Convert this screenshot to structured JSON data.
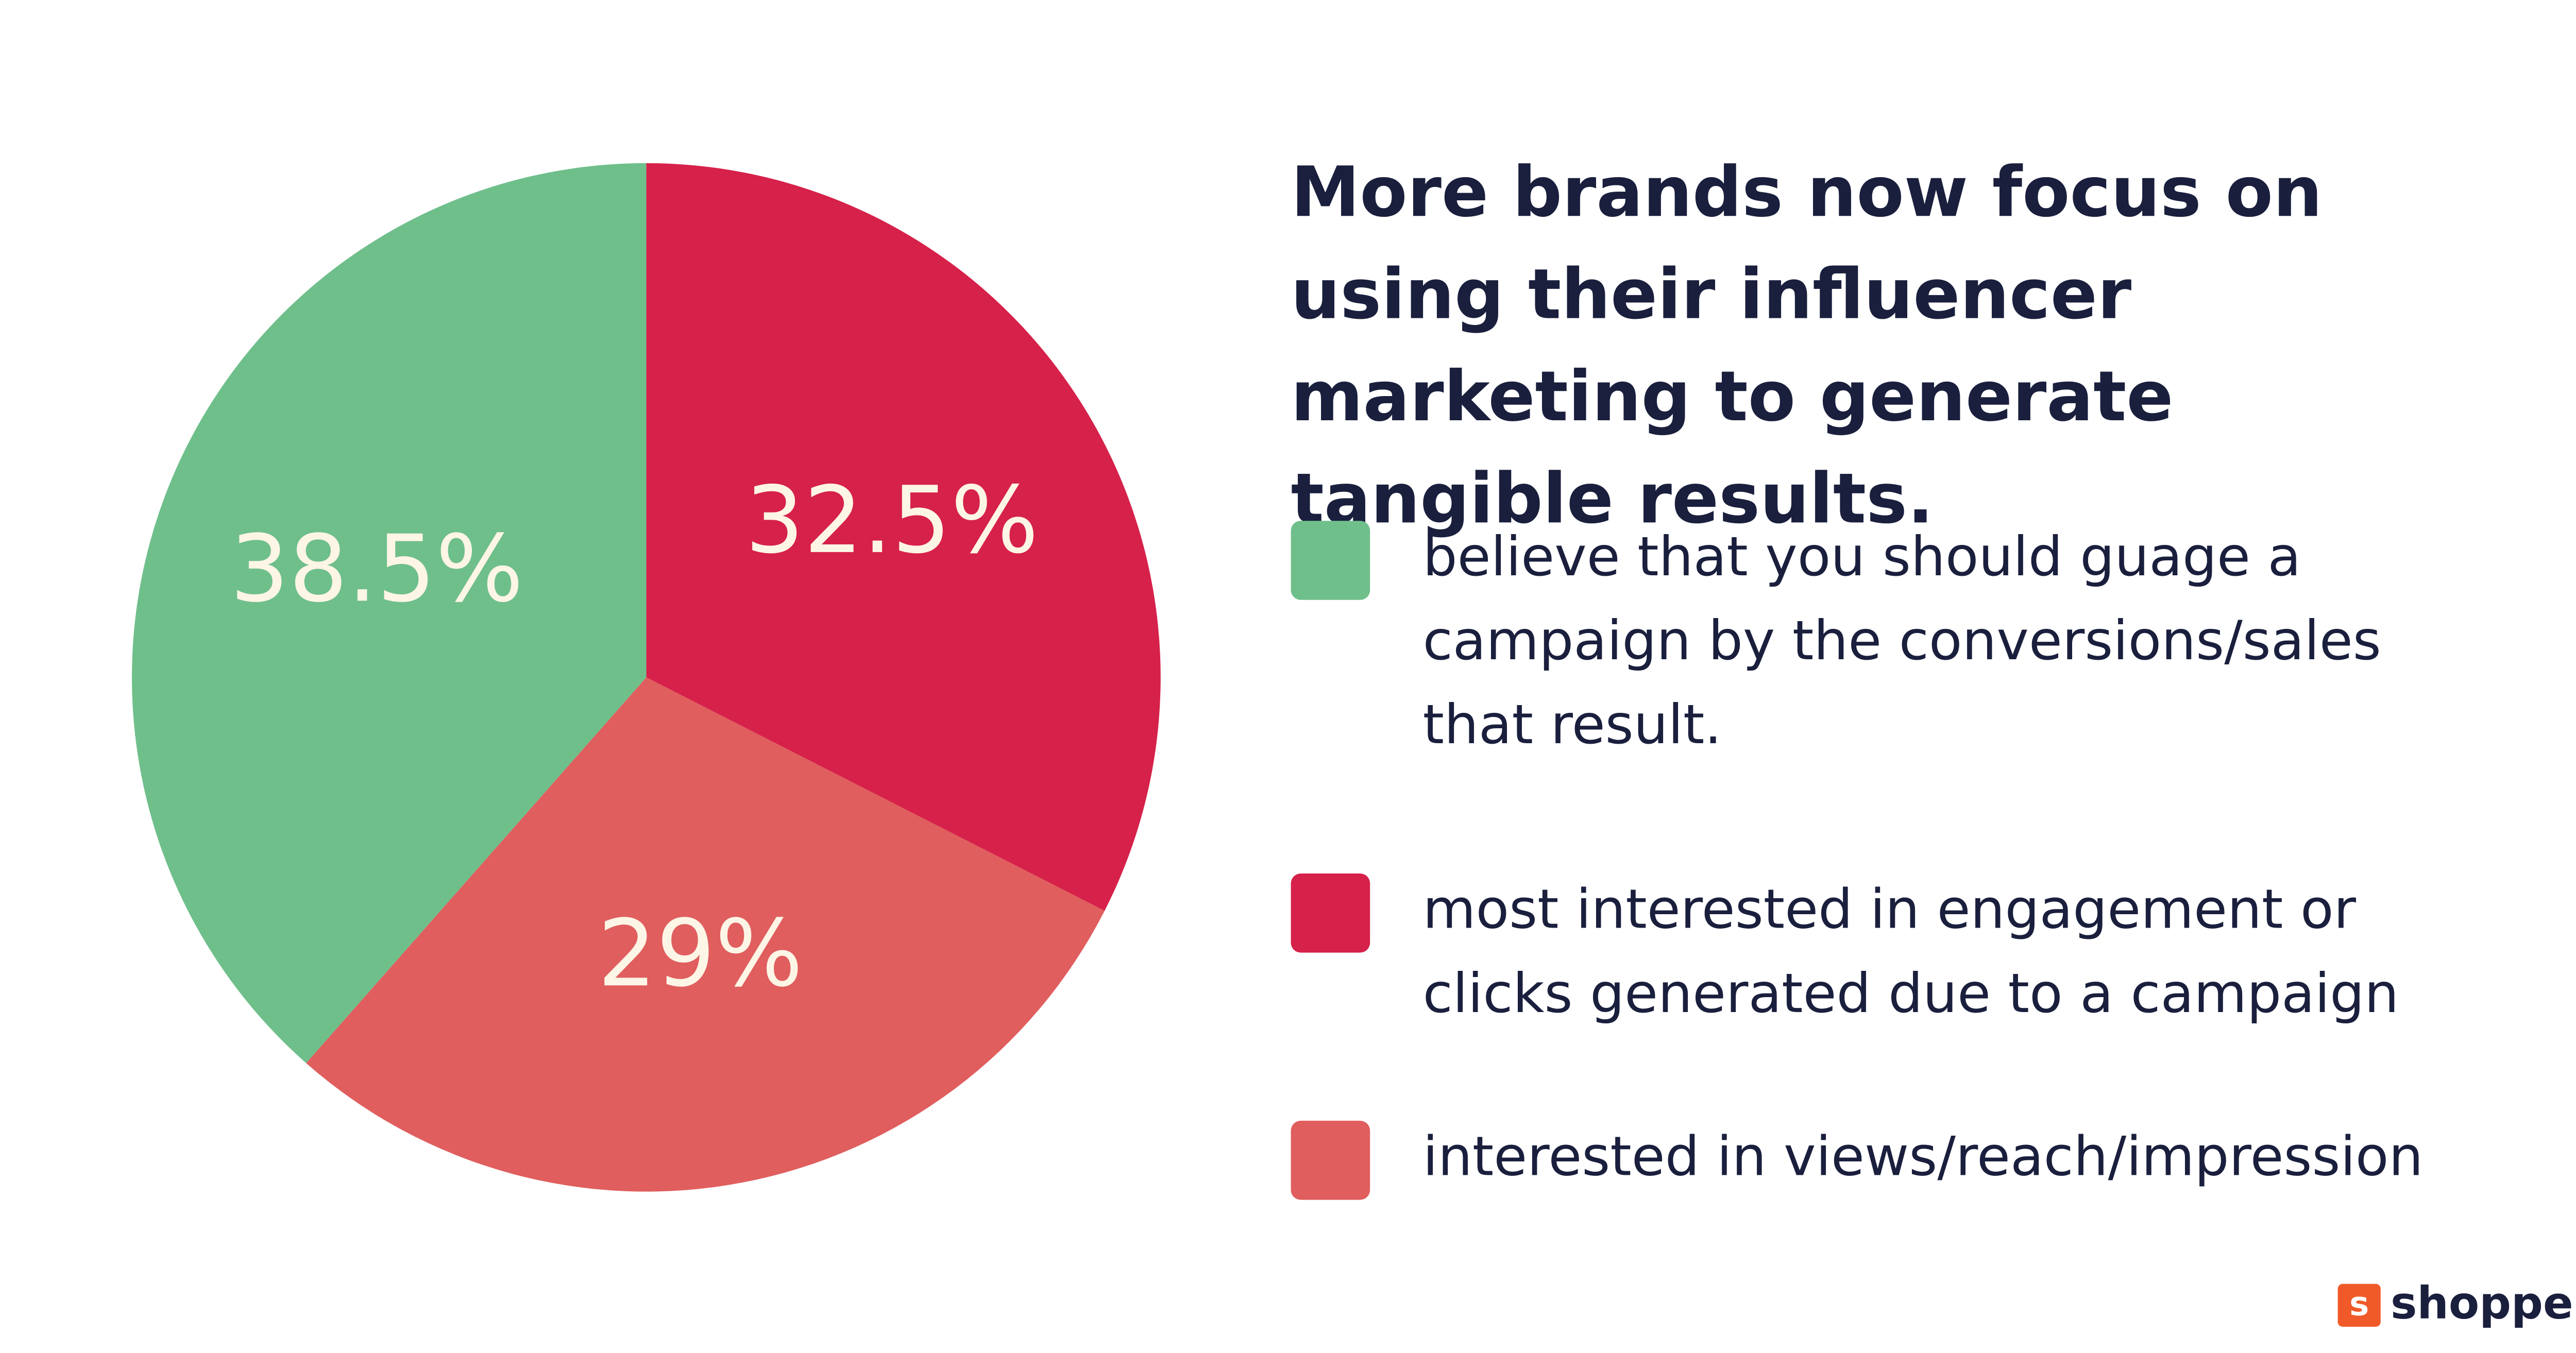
{
  "chart_data": {
    "type": "pie",
    "title": "More brands now focus on using their influencer marketing to generate tangible results.",
    "categories": [
      "most interested in engagement or clicks generated due to a campaign",
      "interested in views/reach/impression",
      "believe that you should guage a campaign by the conversions/sales that result."
    ],
    "values": [
      32.5,
      29,
      38.5
    ],
    "value_labels": [
      "32.5%",
      "29%",
      "38.5%"
    ],
    "colors": [
      "#d6214a",
      "#e05e5e",
      "#6fbf8b"
    ],
    "legend_order": [
      2,
      0,
      1
    ]
  },
  "logo": {
    "icon": "s",
    "text": "shopper"
  }
}
